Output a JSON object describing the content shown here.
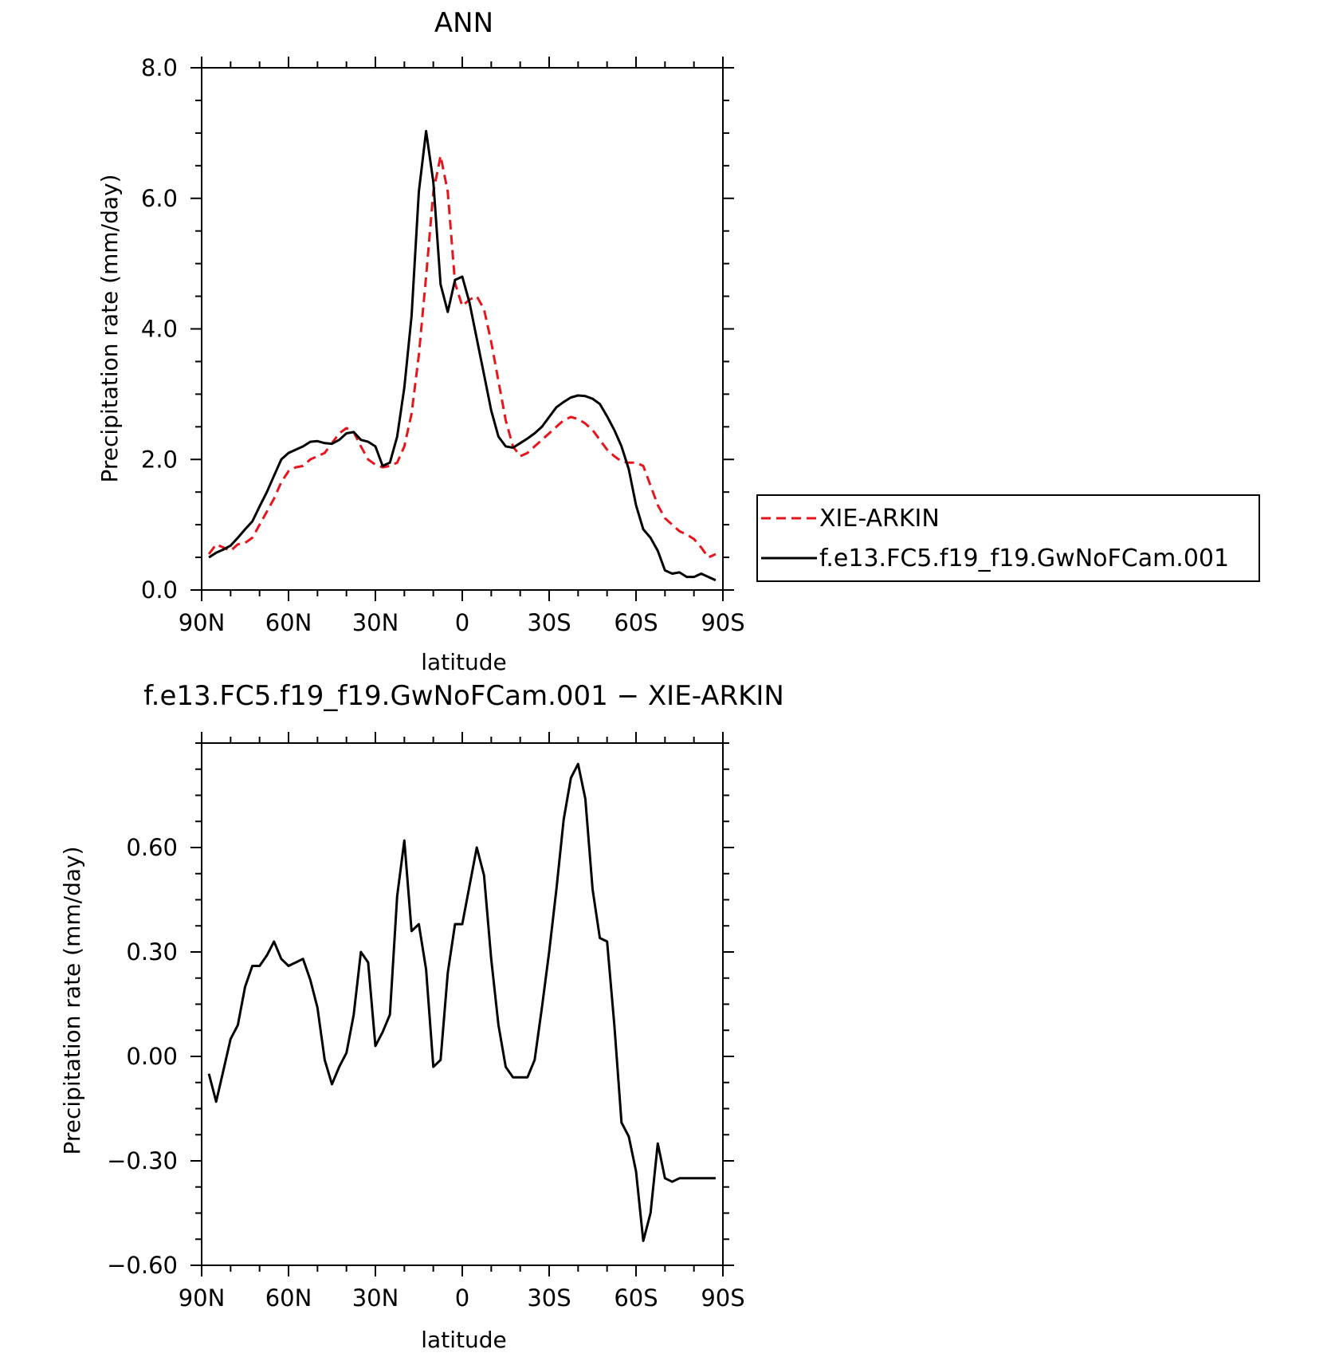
{
  "colors": {
    "obs": "#e8141c",
    "model": "#000000",
    "frame": "#000000"
  },
  "chart_data": [
    {
      "type": "line",
      "title": "ANN",
      "xlabel": "latitude",
      "ylabel": "Precipitation rate (mm/day)",
      "xlim": [
        90,
        -90
      ],
      "ylim": [
        0,
        8
      ],
      "xticks": [
        90,
        60,
        30,
        0,
        -30,
        -60,
        -90
      ],
      "xtick_labels": [
        "90N",
        "60N",
        "30N",
        "0",
        "30S",
        "60S",
        "90S"
      ],
      "yticks": [
        0,
        2,
        4,
        6,
        8
      ],
      "ytick_labels": [
        "0.0",
        "2.0",
        "4.0",
        "6.0",
        "8.0"
      ],
      "legend": {
        "position": "right",
        "entries": [
          "XIE-ARKIN",
          "f.e13.FC5.f19_f19.GwNoFCam.001"
        ]
      },
      "series": [
        {
          "name": "XIE-ARKIN",
          "style": "dashed",
          "color": "#e8141c",
          "x": [
            87.5,
            85,
            82.5,
            80,
            77.5,
            75,
            72.5,
            70,
            67.5,
            65,
            62.5,
            60,
            57.5,
            55,
            52.5,
            50,
            47.5,
            45,
            42.5,
            40,
            37.5,
            35,
            32.5,
            30,
            27.5,
            25,
            22.5,
            20,
            17.5,
            15,
            12.5,
            10,
            7.5,
            5,
            2.5,
            0,
            -2.5,
            -5,
            -7.5,
            -10,
            -12.5,
            -15,
            -17.5,
            -20,
            -22.5,
            -25,
            -27.5,
            -30,
            -32.5,
            -35,
            -37.5,
            -40,
            -42.5,
            -45,
            -47.5,
            -50,
            -52.5,
            -55,
            -57.5,
            -60,
            -62.5,
            -65,
            -67.5,
            -70,
            -72.5,
            -75,
            -77.5,
            -80,
            -82.5,
            -85,
            -87.5
          ],
          "y": [
            0.55,
            0.7,
            0.65,
            0.6,
            0.7,
            0.72,
            0.8,
            1.0,
            1.2,
            1.4,
            1.65,
            1.82,
            1.88,
            1.9,
            2.0,
            2.05,
            2.1,
            2.25,
            2.4,
            2.48,
            2.42,
            2.2,
            2.0,
            1.92,
            1.88,
            1.9,
            1.95,
            2.2,
            2.7,
            3.6,
            4.8,
            6.1,
            6.65,
            6.1,
            4.7,
            4.35,
            4.45,
            4.5,
            4.3,
            3.8,
            3.2,
            2.6,
            2.2,
            2.05,
            2.1,
            2.2,
            2.3,
            2.4,
            2.5,
            2.6,
            2.65,
            2.62,
            2.55,
            2.45,
            2.3,
            2.15,
            2.05,
            1.97,
            1.95,
            1.95,
            1.9,
            1.6,
            1.3,
            1.1,
            1.0,
            0.9,
            0.85,
            0.78,
            0.65,
            0.5,
            0.55
          ]
        },
        {
          "name": "f.e13.FC5.f19_f19.GwNoFCam.001",
          "style": "solid",
          "color": "#000000",
          "x": [
            87.5,
            85,
            82.5,
            80,
            77.5,
            75,
            72.5,
            70,
            67.5,
            65,
            62.5,
            60,
            57.5,
            55,
            52.5,
            50,
            47.5,
            45,
            42.5,
            40,
            37.5,
            35,
            32.5,
            30,
            27.5,
            25,
            22.5,
            20,
            17.5,
            15,
            12.5,
            10,
            7.5,
            5,
            2.5,
            0,
            -2.5,
            -5,
            -7.5,
            -10,
            -12.5,
            -15,
            -17.5,
            -20,
            -22.5,
            -25,
            -27.5,
            -30,
            -32.5,
            -35,
            -37.5,
            -40,
            -42.5,
            -45,
            -47.5,
            -50,
            -52.5,
            -55,
            -57.5,
            -60,
            -62.5,
            -65,
            -67.5,
            -70,
            -72.5,
            -75,
            -77.5,
            -80,
            -82.5,
            -85,
            -87.5
          ],
          "y": [
            0.5,
            0.57,
            0.62,
            0.68,
            0.8,
            0.93,
            1.05,
            1.28,
            1.5,
            1.75,
            2.0,
            2.1,
            2.15,
            2.2,
            2.27,
            2.28,
            2.25,
            2.24,
            2.3,
            2.4,
            2.42,
            2.3,
            2.27,
            2.2,
            1.9,
            1.95,
            2.35,
            3.1,
            4.2,
            6.1,
            7.03,
            6.25,
            4.68,
            4.26,
            4.75,
            4.8,
            4.4,
            3.85,
            3.3,
            2.75,
            2.35,
            2.2,
            2.18,
            2.25,
            2.32,
            2.4,
            2.5,
            2.65,
            2.8,
            2.88,
            2.95,
            2.98,
            2.97,
            2.93,
            2.85,
            2.66,
            2.45,
            2.2,
            1.85,
            1.3,
            0.93,
            0.8,
            0.6,
            0.3,
            0.25,
            0.27,
            0.2,
            0.2,
            0.25,
            0.2,
            0.15
          ]
        }
      ]
    },
    {
      "type": "line",
      "title": "f.e13.FC5.f19_f19.GwNoFCam.001 − XIE-ARKIN",
      "xlabel": "latitude",
      "ylabel": "Precipitation rate (mm/day)",
      "xlim": [
        90,
        -90
      ],
      "ylim": [
        -0.6,
        0.9
      ],
      "xticks": [
        90,
        60,
        30,
        0,
        -30,
        -60,
        -90
      ],
      "xtick_labels": [
        "90N",
        "60N",
        "30N",
        "0",
        "30S",
        "60S",
        "90S"
      ],
      "yticks": [
        -0.6,
        -0.3,
        0,
        0.3,
        0.6
      ],
      "ytick_labels": [
        "−0.60",
        "−0.30",
        "0.00",
        "0.30",
        "0.60"
      ],
      "series": [
        {
          "style": "solid",
          "color": "#000000",
          "x": [
            87.5,
            85,
            82.5,
            80,
            77.5,
            75,
            72.5,
            70,
            67.5,
            65,
            62.5,
            60,
            57.5,
            55,
            52.5,
            50,
            47.5,
            45,
            42.5,
            40,
            37.5,
            35,
            32.5,
            30,
            27.5,
            25,
            22.5,
            20,
            17.5,
            15,
            12.5,
            10,
            7.5,
            5,
            2.5,
            0,
            -2.5,
            -5,
            -7.5,
            -10,
            -12.5,
            -15,
            -17.5,
            -20,
            -22.5,
            -25,
            -27.5,
            -30,
            -32.5,
            -35,
            -37.5,
            -40,
            -42.5,
            -45,
            -47.5,
            -50,
            -52.5,
            -55,
            -57.5,
            -60,
            -62.5,
            -65,
            -67.5,
            -70,
            -72.5,
            -75,
            -77.5,
            -80,
            -82.5,
            -85,
            -87.5
          ],
          "y": [
            -0.05,
            -0.13,
            -0.04,
            0.05,
            0.09,
            0.2,
            0.26,
            0.26,
            0.29,
            0.33,
            0.28,
            0.26,
            0.27,
            0.28,
            0.22,
            0.14,
            -0.01,
            -0.08,
            -0.03,
            0.01,
            0.12,
            0.3,
            0.27,
            0.03,
            0.07,
            0.12,
            0.46,
            0.62,
            0.36,
            0.38,
            0.25,
            -0.03,
            -0.01,
            0.24,
            0.38,
            0.38,
            0.49,
            0.6,
            0.52,
            0.28,
            0.09,
            -0.03,
            -0.06,
            -0.06,
            -0.06,
            -0.01,
            0.14,
            0.3,
            0.48,
            0.68,
            0.8,
            0.84,
            0.74,
            0.48,
            0.34,
            0.33,
            0.09,
            -0.19,
            -0.23,
            -0.33,
            -0.53,
            -0.45,
            -0.25,
            -0.35,
            -0.36,
            -0.35,
            -0.35,
            -0.35,
            -0.35,
            -0.35,
            -0.35
          ]
        }
      ]
    }
  ]
}
